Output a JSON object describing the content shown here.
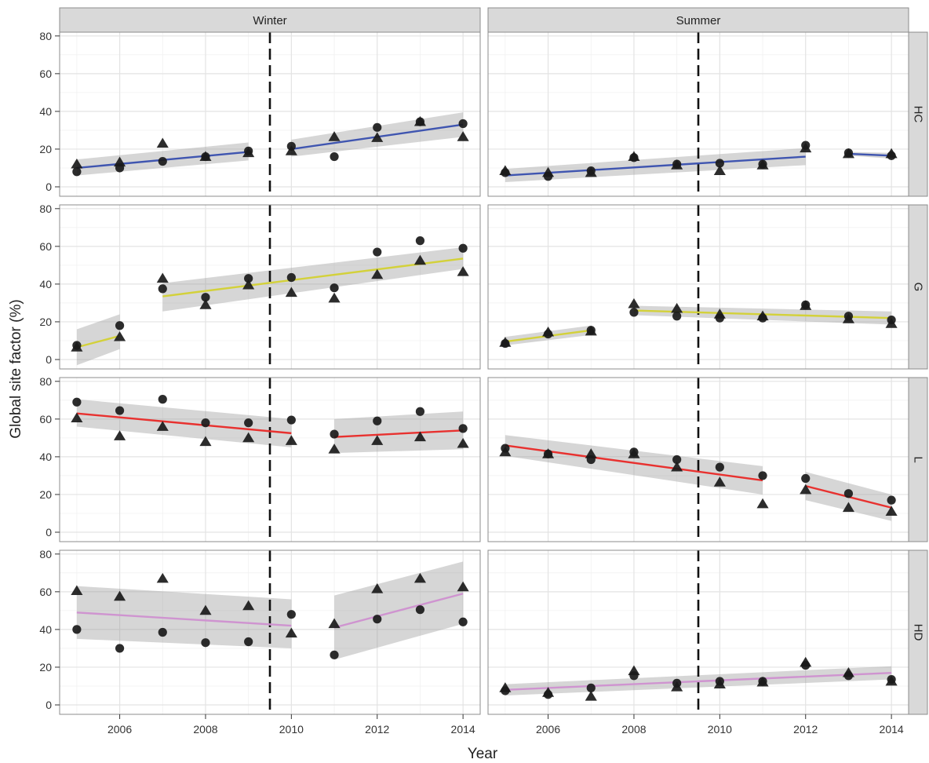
{
  "chart_data": {
    "type": "scatter",
    "xlabel": "Year",
    "ylabel": "Global site factor (%)",
    "xlim": [
      2004.6,
      2014.4
    ],
    "ylim": [
      -5,
      82
    ],
    "x_ticks": [
      2006,
      2008,
      2010,
      2012,
      2014
    ],
    "y_ticks": [
      0,
      20,
      40,
      60,
      80
    ],
    "vline_x": 2009.5,
    "grid": true,
    "columns": [
      "Winter",
      "Summer"
    ],
    "rows": [
      "HC",
      "G",
      "L",
      "HD"
    ],
    "row_colors": {
      "HC": "#3f55b0",
      "G": "#d3d13a",
      "L": "#e8312f",
      "HD": "#cf94d0"
    },
    "panels": [
      {
        "column": "Winter",
        "row": "HC",
        "circles": [
          [
            2005,
            8
          ],
          [
            2006,
            10
          ],
          [
            2007,
            13.5
          ],
          [
            2008,
            16
          ],
          [
            2009,
            19
          ],
          [
            2010,
            21.5
          ],
          [
            2011,
            16
          ],
          [
            2012,
            31.5
          ],
          [
            2013,
            34.5
          ],
          [
            2014,
            33.5
          ]
        ],
        "triangles": [
          [
            2005,
            12
          ],
          [
            2006,
            13
          ],
          [
            2007,
            23
          ],
          [
            2008,
            16
          ],
          [
            2009,
            18
          ],
          [
            2010,
            19
          ],
          [
            2011,
            26.5
          ],
          [
            2012,
            26
          ],
          [
            2013,
            34.5
          ],
          [
            2014,
            26.5
          ]
        ],
        "fits": [
          {
            "x": [
              2005,
              2009
            ],
            "y": [
              10,
              18.5
            ],
            "lo": [
              6,
              14
            ],
            "hi": [
              14.5,
              23.5
            ]
          },
          {
            "x": [
              2010,
              2014
            ],
            "y": [
              20,
              33
            ],
            "lo": [
              16,
              26.5
            ],
            "hi": [
              25,
              39.5
            ]
          }
        ]
      },
      {
        "column": "Summer",
        "row": "HC",
        "circles": [
          [
            2005,
            7.5
          ],
          [
            2006,
            5.5
          ],
          [
            2007,
            8.5
          ],
          [
            2008,
            15.5
          ],
          [
            2009,
            12
          ],
          [
            2010,
            12.5
          ],
          [
            2011,
            12
          ],
          [
            2012,
            22
          ],
          [
            2013,
            18
          ],
          [
            2014,
            16.5
          ]
        ],
        "triangles": [
          [
            2005,
            8.5
          ],
          [
            2006,
            7.5
          ],
          [
            2007,
            7.5
          ],
          [
            2008,
            16
          ],
          [
            2009,
            11.5
          ],
          [
            2010,
            8.5
          ],
          [
            2011,
            11.5
          ],
          [
            2012,
            20.5
          ],
          [
            2013,
            17.5
          ],
          [
            2014,
            17.5
          ]
        ],
        "fits": [
          {
            "x": [
              2005,
              2012
            ],
            "y": [
              6,
              16
            ],
            "lo": [
              2.5,
              11.5
            ],
            "hi": [
              9.5,
              20.5
            ]
          },
          {
            "x": [
              2013,
              2014
            ],
            "y": [
              17.5,
              16.5
            ],
            "lo": [
              16.5,
              15
            ],
            "hi": [
              18.5,
              18
            ]
          }
        ]
      },
      {
        "column": "Winter",
        "row": "G",
        "circles": [
          [
            2005,
            7.5
          ],
          [
            2006,
            18
          ],
          [
            2007,
            37.5
          ],
          [
            2008,
            33
          ],
          [
            2009,
            43
          ],
          [
            2010,
            43.5
          ],
          [
            2011,
            38
          ],
          [
            2012,
            57
          ],
          [
            2013,
            63
          ],
          [
            2014,
            59
          ]
        ],
        "triangles": [
          [
            2005,
            6.5
          ],
          [
            2006,
            12
          ],
          [
            2007,
            43
          ],
          [
            2008,
            29
          ],
          [
            2009,
            39.5
          ],
          [
            2010,
            35.5
          ],
          [
            2011,
            32.5
          ],
          [
            2012,
            45
          ],
          [
            2013,
            52.5
          ],
          [
            2014,
            46.5
          ]
        ],
        "fits": [
          {
            "x": [
              2005,
              2006
            ],
            "y": [
              6.5,
              12.5
            ],
            "lo": [
              -3,
              5.5
            ],
            "hi": [
              16,
              24
            ]
          },
          {
            "x": [
              2007,
              2014
            ],
            "y": [
              33.5,
              53.5
            ],
            "lo": [
              25.5,
              48
            ],
            "hi": [
              40.5,
              59.5
            ]
          }
        ]
      },
      {
        "column": "Summer",
        "row": "G",
        "circles": [
          [
            2005,
            8.5
          ],
          [
            2006,
            13.5
          ],
          [
            2007,
            15.5
          ],
          [
            2008,
            25
          ],
          [
            2009,
            23
          ],
          [
            2010,
            22
          ],
          [
            2011,
            22
          ],
          [
            2012,
            29
          ],
          [
            2013,
            23
          ],
          [
            2014,
            21
          ]
        ],
        "triangles": [
          [
            2005,
            9
          ],
          [
            2006,
            14.5
          ],
          [
            2007,
            15
          ],
          [
            2008,
            29.5
          ],
          [
            2009,
            27
          ],
          [
            2010,
            24
          ],
          [
            2011,
            23
          ],
          [
            2012,
            28.5
          ],
          [
            2013,
            21.5
          ],
          [
            2014,
            19
          ]
        ],
        "fits": [
          {
            "x": [
              2005,
              2007
            ],
            "y": [
              9.5,
              15.5
            ],
            "lo": [
              7.5,
              13
            ],
            "hi": [
              12,
              18
            ]
          },
          {
            "x": [
              2008,
              2014
            ],
            "y": [
              26,
              22
            ],
            "lo": [
              23.5,
              18.5
            ],
            "hi": [
              28.5,
              25.5
            ]
          }
        ]
      },
      {
        "column": "Winter",
        "row": "L",
        "circles": [
          [
            2005,
            69
          ],
          [
            2006,
            64.5
          ],
          [
            2007,
            70.5
          ],
          [
            2008,
            58
          ],
          [
            2009,
            58
          ],
          [
            2010,
            59.5
          ],
          [
            2011,
            52
          ],
          [
            2012,
            59
          ],
          [
            2013,
            64
          ],
          [
            2014,
            55
          ]
        ],
        "triangles": [
          [
            2005,
            60.5
          ],
          [
            2006,
            51
          ],
          [
            2007,
            56
          ],
          [
            2008,
            48
          ],
          [
            2009,
            50
          ],
          [
            2010,
            48.5
          ],
          [
            2011,
            44
          ],
          [
            2012,
            48.5
          ],
          [
            2013,
            50.5
          ],
          [
            2014,
            47
          ]
        ],
        "fits": [
          {
            "x": [
              2005,
              2010
            ],
            "y": [
              63,
              52.5
            ],
            "lo": [
              56,
              45
            ],
            "hi": [
              70.5,
              60
            ]
          },
          {
            "x": [
              2011,
              2014
            ],
            "y": [
              50.5,
              54
            ],
            "lo": [
              42,
              44
            ],
            "hi": [
              60,
              64
            ]
          }
        ]
      },
      {
        "column": "Summer",
        "row": "L",
        "circles": [
          [
            2005,
            44.5
          ],
          [
            2006,
            41.5
          ],
          [
            2007,
            38.5
          ],
          [
            2008,
            42.5
          ],
          [
            2009,
            38.5
          ],
          [
            2010,
            34.5
          ],
          [
            2011,
            30
          ],
          [
            2012,
            28.5
          ],
          [
            2013,
            20.5
          ],
          [
            2014,
            17
          ]
        ],
        "triangles": [
          [
            2005,
            42.5
          ],
          [
            2006,
            41.5
          ],
          [
            2007,
            41.5
          ],
          [
            2008,
            41.5
          ],
          [
            2009,
            34.5
          ],
          [
            2010,
            26.5
          ],
          [
            2011,
            15
          ],
          [
            2012,
            22.5
          ],
          [
            2013,
            13
          ],
          [
            2014,
            11
          ]
        ],
        "fits": [
          {
            "x": [
              2005,
              2011
            ],
            "y": [
              46,
              27.5
            ],
            "lo": [
              40.5,
              20
            ],
            "hi": [
              51.5,
              35
            ]
          },
          {
            "x": [
              2012,
              2014
            ],
            "y": [
              24.5,
              13
            ],
            "lo": [
              17,
              6
            ],
            "hi": [
              32,
              20
            ]
          }
        ]
      },
      {
        "column": "Winter",
        "row": "HD",
        "circles": [
          [
            2005,
            40
          ],
          [
            2006,
            30
          ],
          [
            2007,
            38.5
          ],
          [
            2008,
            33
          ],
          [
            2009,
            33.5
          ],
          [
            2010,
            48
          ],
          [
            2011,
            26.5
          ],
          [
            2012,
            45.5
          ],
          [
            2013,
            50.5
          ],
          [
            2014,
            44
          ]
        ],
        "triangles": [
          [
            2005,
            60.5
          ],
          [
            2006,
            57.5
          ],
          [
            2007,
            67
          ],
          [
            2008,
            50
          ],
          [
            2009,
            52.5
          ],
          [
            2010,
            38
          ],
          [
            2011,
            43
          ],
          [
            2012,
            61.5
          ],
          [
            2013,
            67
          ],
          [
            2014,
            62.5
          ]
        ],
        "fits": [
          {
            "x": [
              2005,
              2010
            ],
            "y": [
              49,
              42
            ],
            "lo": [
              35,
              30
            ],
            "hi": [
              63,
              56
            ]
          },
          {
            "x": [
              2011,
              2014
            ],
            "y": [
              41,
              59
            ],
            "lo": [
              24,
              43
            ],
            "hi": [
              58,
              76
            ]
          }
        ]
      },
      {
        "column": "Summer",
        "row": "HD",
        "circles": [
          [
            2005,
            7.5
          ],
          [
            2006,
            5.5
          ],
          [
            2007,
            9
          ],
          [
            2008,
            15.5
          ],
          [
            2009,
            11.5
          ],
          [
            2010,
            12.5
          ],
          [
            2011,
            12.5
          ],
          [
            2012,
            21
          ],
          [
            2013,
            15.5
          ],
          [
            2014,
            13.5
          ]
        ],
        "triangles": [
          [
            2005,
            9
          ],
          [
            2006,
            6.5
          ],
          [
            2007,
            4.5
          ],
          [
            2008,
            18
          ],
          [
            2009,
            9.5
          ],
          [
            2010,
            11
          ],
          [
            2011,
            12
          ],
          [
            2012,
            22.5
          ],
          [
            2013,
            17
          ],
          [
            2014,
            12.5
          ]
        ],
        "fits": [
          {
            "x": [
              2005,
              2014
            ],
            "y": [
              8,
              17
            ],
            "lo": [
              5,
              13.5
            ],
            "hi": [
              11,
              20.5
            ]
          }
        ]
      }
    ]
  }
}
